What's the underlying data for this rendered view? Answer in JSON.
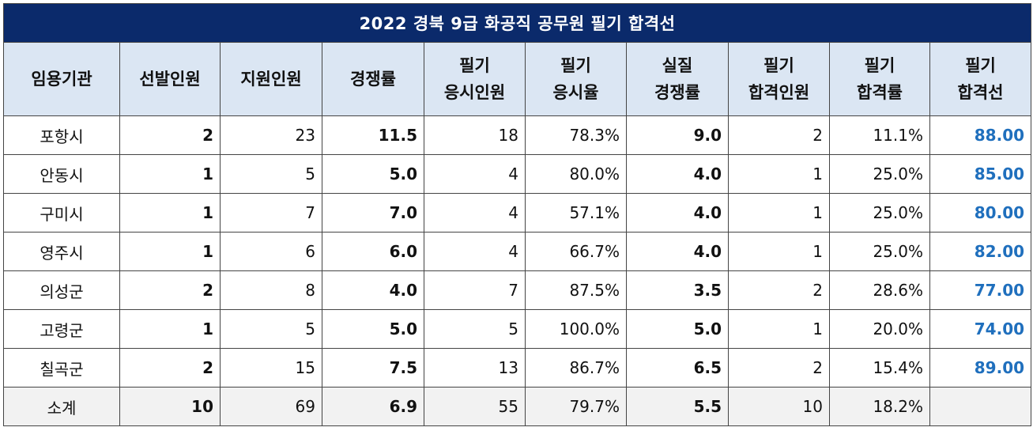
{
  "title": "2022 경북 9급 화공직 공무원 필기 합격선",
  "headers": [
    "임용기관",
    "선발인원",
    "지원인원",
    "경쟁률",
    "필기\n응시인원",
    "필기\n응시율",
    "실질\n경쟁률",
    "필기\n합격인원",
    "필기\n합격률",
    "필기\n합격선"
  ],
  "rows": [
    [
      "포항시",
      "2",
      "23",
      "11.5",
      "18",
      "78.3%",
      "9.0",
      "2",
      "11.1%",
      "88.00"
    ],
    [
      "안동시",
      "1",
      "5",
      "5.0",
      "4",
      "80.0%",
      "4.0",
      "1",
      "25.0%",
      "85.00"
    ],
    [
      "구미시",
      "1",
      "7",
      "7.0",
      "4",
      "57.1%",
      "4.0",
      "1",
      "25.0%",
      "80.00"
    ],
    [
      "영주시",
      "1",
      "6",
      "6.0",
      "4",
      "66.7%",
      "4.0",
      "1",
      "25.0%",
      "82.00"
    ],
    [
      "의성군",
      "2",
      "8",
      "4.0",
      "7",
      "87.5%",
      "3.5",
      "2",
      "28.6%",
      "77.00"
    ],
    [
      "고령군",
      "1",
      "5",
      "5.0",
      "5",
      "100.0%",
      "5.0",
      "1",
      "20.0%",
      "74.00"
    ],
    [
      "칠곡군",
      "2",
      "15",
      "7.5",
      "13",
      "86.7%",
      "6.5",
      "2",
      "15.4%",
      "89.00"
    ]
  ],
  "total": [
    "소계",
    "10",
    "69",
    "6.9",
    "55",
    "79.7%",
    "5.5",
    "10",
    "18.2%",
    ""
  ],
  "colors": {
    "title_bg": "#0b2a6b",
    "header_bg": "#dbe6f3",
    "score_text": "#1f6fbd",
    "total_bg": "#f2f2f2"
  }
}
